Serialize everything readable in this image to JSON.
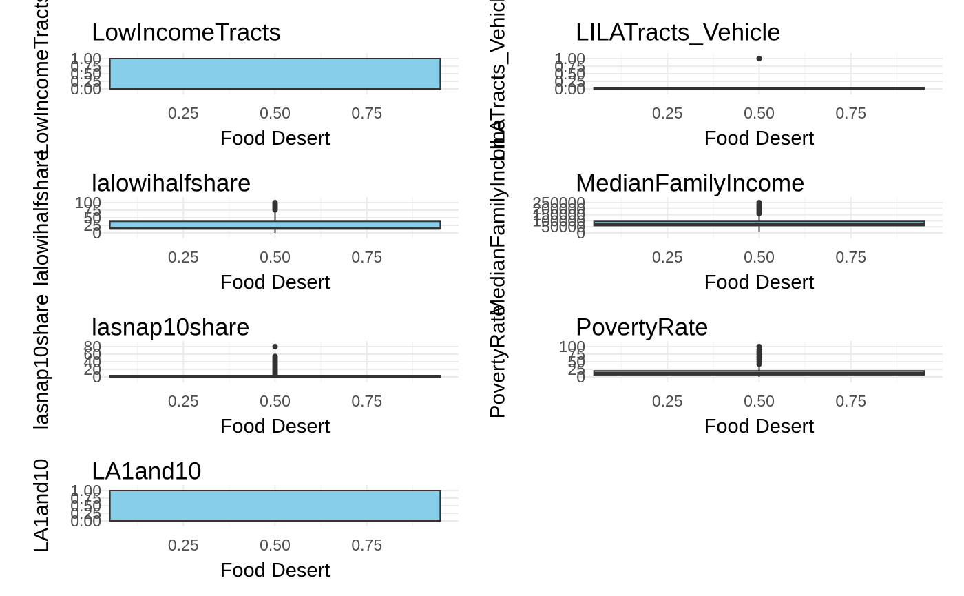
{
  "chart_data": [
    {
      "type": "boxplot",
      "title": "LowIncomeTracts",
      "xlabel": "Food Desert",
      "ylabel": "LowIncomeTracts",
      "x_ticks": [
        "0.25",
        "0.50",
        "0.75"
      ],
      "y_ticks": [
        "0.00",
        "0.25",
        "0.50",
        "0.75",
        "1.00"
      ],
      "xlim": [
        0.0,
        1.0
      ],
      "ylim": [
        0,
        1
      ],
      "box": {
        "q1": 0,
        "median": 0,
        "q3": 1,
        "whisker_low": 0,
        "whisker_high": 1,
        "outliers": []
      },
      "fill": "#87ceeb",
      "stroke": "#333333"
    },
    {
      "type": "boxplot",
      "title": "LILATracts_Vehicle",
      "xlabel": "Food Desert",
      "ylabel": "LILATracts_Vehicle",
      "x_ticks": [
        "0.25",
        "0.50",
        "0.75"
      ],
      "y_ticks": [
        "0.00",
        "0.25",
        "0.50",
        "0.75",
        "1.00"
      ],
      "xlim": [
        0.0,
        1.0
      ],
      "ylim": [
        0,
        1
      ],
      "box": {
        "q1": 0,
        "median": 0,
        "q3": 0,
        "whisker_low": 0,
        "whisker_high": 0,
        "outliers": [
          1
        ]
      },
      "fill": "#87ceeb",
      "stroke": "#333333"
    },
    {
      "type": "boxplot",
      "title": "lalowihalfshare",
      "xlabel": "Food Desert",
      "ylabel": "lalowihalfshare",
      "x_ticks": [
        "0.25",
        "0.50",
        "0.75"
      ],
      "y_ticks": [
        "0",
        "25",
        "50",
        "75",
        "100"
      ],
      "xlim": [
        0.0,
        1.0
      ],
      "ylim": [
        0,
        100
      ],
      "box": {
        "q1": 14,
        "median": 15,
        "q3": 38,
        "whisker_low": 0,
        "whisker_high": 72,
        "outliers": [
          76,
          80,
          84,
          88,
          92,
          96,
          100
        ]
      },
      "fill": "#87ceeb",
      "stroke": "#333333"
    },
    {
      "type": "boxplot",
      "title": "MedianFamilyIncome",
      "xlabel": "Food Desert",
      "ylabel": "MedianFamilyIncome",
      "x_ticks": [
        "0.25",
        "0.50",
        "0.75"
      ],
      "y_ticks": [
        "0",
        "50000",
        "100000",
        "150000",
        "200000",
        "250000"
      ],
      "xlim": [
        0.0,
        1.0
      ],
      "ylim": [
        0,
        250000
      ],
      "box": {
        "q1": 60000,
        "median": 72000,
        "q3": 95000,
        "whisker_low": 12000,
        "whisker_high": 150000,
        "outliers": [
          160000,
          175000,
          190000,
          205000,
          220000,
          235000,
          250000
        ]
      },
      "fill": "#87ceeb",
      "stroke": "#333333"
    },
    {
      "type": "boxplot",
      "title": "lasnap10share",
      "xlabel": "Food Desert",
      "ylabel": "lasnap10share",
      "x_ticks": [
        "0.25",
        "0.50",
        "0.75"
      ],
      "y_ticks": [
        "0",
        "20",
        "40",
        "60",
        "80"
      ],
      "xlim": [
        0.0,
        1.0
      ],
      "ylim": [
        0,
        80
      ],
      "box": {
        "q1": 0,
        "median": 0,
        "q3": 2,
        "whisker_low": 0,
        "whisker_high": 5,
        "outliers": [
          7,
          10,
          14,
          18,
          22,
          26,
          30,
          34,
          38,
          42,
          46,
          50,
          54,
          80
        ]
      },
      "fill": "#87ceeb",
      "stroke": "#333333"
    },
    {
      "type": "boxplot",
      "title": "PovertyRate",
      "xlabel": "Food Desert",
      "ylabel": "PovertyRate",
      "x_ticks": [
        "0.25",
        "0.50",
        "0.75"
      ],
      "y_ticks": [
        "0",
        "25",
        "50",
        "75",
        "100"
      ],
      "xlim": [
        0.0,
        1.0
      ],
      "ylim": [
        0,
        100
      ],
      "box": {
        "q1": 7,
        "median": 12,
        "q3": 20,
        "whisker_low": 0,
        "whisker_high": 39,
        "outliers": [
          42,
          50,
          58,
          66,
          74,
          82,
          90,
          100
        ]
      },
      "fill": "#87ceeb",
      "stroke": "#333333"
    },
    {
      "type": "boxplot",
      "title": "LA1and10",
      "xlabel": "Food Desert",
      "ylabel": "LA1and10",
      "x_ticks": [
        "0.25",
        "0.50",
        "0.75"
      ],
      "y_ticks": [
        "0.00",
        "0.25",
        "0.50",
        "0.75",
        "1.00"
      ],
      "xlim": [
        0.0,
        1.0
      ],
      "ylim": [
        0,
        1
      ],
      "box": {
        "q1": 0,
        "median": 0,
        "q3": 1,
        "whisker_low": 0,
        "whisker_high": 1,
        "outliers": []
      },
      "fill": "#87ceeb",
      "stroke": "#333333"
    }
  ]
}
